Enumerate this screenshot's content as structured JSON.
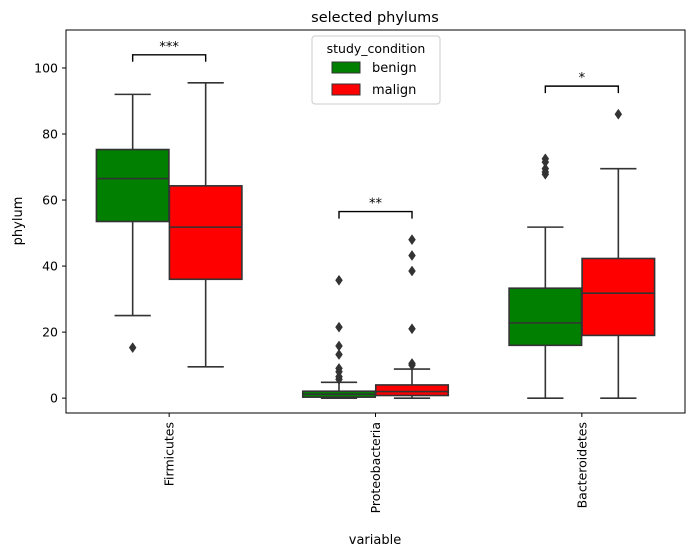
{
  "chart_data": {
    "type": "box",
    "title": "selected phylums",
    "xlabel": "variable",
    "ylabel": "phylum",
    "ylim": [
      -4.5,
      111.5
    ],
    "yticks": [
      0,
      20,
      40,
      60,
      80,
      100
    ],
    "categories": [
      "Firmicutes",
      "Proteobacteria",
      "Bacteroidetes"
    ],
    "legend": {
      "title": "study_condition",
      "position": "top-center"
    },
    "series": [
      {
        "name": "benign",
        "color": "#007f00",
        "boxes": [
          {
            "whislo": 25,
            "q1": 53.5,
            "med": 66.5,
            "q3": 75.3,
            "whishi": 92,
            "fliers": [
              15.3
            ]
          },
          {
            "whislo": 0,
            "q1": 0.3,
            "med": 1.2,
            "q3": 2.1,
            "whishi": 4.8,
            "fliers": [
              35.7,
              21.5,
              15.8,
              13.2,
              9.0,
              8.0,
              6.5,
              5.7
            ]
          },
          {
            "whislo": 0,
            "q1": 16,
            "med": 22.8,
            "q3": 33.3,
            "whishi": 51.8,
            "fliers": [
              72.5,
              71.5,
              69.5,
              68.5,
              67.8
            ]
          }
        ]
      },
      {
        "name": "malign",
        "color": "#ff0000",
        "boxes": [
          {
            "whislo": 9.5,
            "q1": 36,
            "med": 51.8,
            "q3": 64.3,
            "whishi": 95.5,
            "fliers": []
          },
          {
            "whislo": 0,
            "q1": 0.8,
            "med": 2,
            "q3": 4,
            "whishi": 8.8,
            "fliers": [
              48,
              43.2,
              38.5,
              21,
              10.5,
              10
            ]
          },
          {
            "whislo": 0,
            "q1": 19,
            "med": 31.8,
            "q3": 42.3,
            "whishi": 69.5,
            "fliers": [
              86
            ]
          }
        ]
      }
    ],
    "annotations": [
      {
        "category": "Firmicutes",
        "label": "***",
        "y": 104
      },
      {
        "category": "Proteobacteria",
        "label": "**",
        "y": 56.5
      },
      {
        "category": "Bacteroidetes",
        "label": "*",
        "y": 94.5
      }
    ]
  }
}
